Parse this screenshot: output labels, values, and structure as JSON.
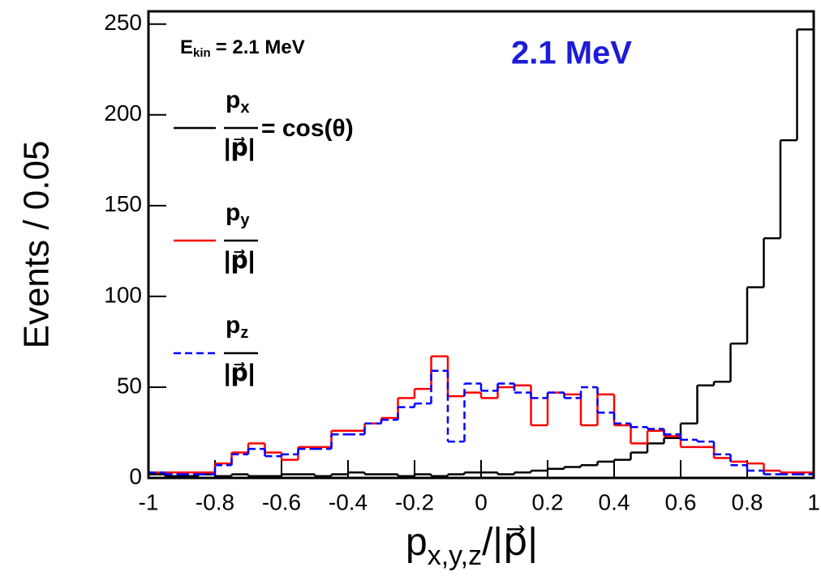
{
  "chart_data": {
    "type": "histogram",
    "ylabel": "Events / 0.05",
    "xlabel": {
      "symbol": "p",
      "subscript": "x,y,z",
      "suffix": "/|p⃗|"
    },
    "annotations": [
      {
        "symbol": "E",
        "subscript": "kin",
        "suffix": "= 2.1 MeV"
      },
      {
        "text": "2.1 MeV",
        "color": "#1c1cd8"
      }
    ],
    "bins": [
      -1,
      -0.95,
      -0.9,
      -0.85,
      -0.8,
      -0.75,
      -0.7,
      -0.65,
      -0.6,
      -0.55,
      -0.5,
      -0.45,
      -0.4,
      -0.35,
      -0.3,
      -0.25,
      -0.2,
      -0.15,
      -0.1,
      -0.05,
      0,
      0.05,
      0.1,
      0.15,
      0.2,
      0.25,
      0.3,
      0.35,
      0.4,
      0.45,
      0.5,
      0.55,
      0.6,
      0.65,
      0.7,
      0.75,
      0.8,
      0.85,
      0.9,
      0.95,
      1
    ],
    "series": [
      {
        "legend": {
          "symbol": "p",
          "subscript": "x",
          "denominator": "|p⃗|",
          "suffix": "= cos(θ)"
        },
        "color": "#000000",
        "linestyle": "solid",
        "values": [
          2,
          1,
          1,
          2,
          1,
          2,
          1,
          1,
          2,
          2,
          1,
          2,
          3,
          2,
          2,
          1,
          2,
          1,
          2,
          3,
          3,
          2,
          3,
          4,
          5,
          6,
          7,
          9,
          10,
          14,
          19,
          22,
          30,
          51,
          53,
          74,
          105,
          132,
          186,
          247
        ]
      },
      {
        "legend": {
          "symbol": "p",
          "subscript": "y",
          "denominator": "|p⃗|"
        },
        "color": "#ff0000",
        "linestyle": "solid",
        "values": [
          3,
          3,
          3,
          3,
          8,
          14,
          19,
          14,
          10,
          17,
          17,
          26,
          26,
          30,
          33,
          44,
          49,
          67,
          45,
          47,
          44,
          50,
          51,
          29,
          47,
          46,
          29,
          46,
          29,
          19,
          26,
          23,
          17,
          17,
          11,
          9,
          8,
          4,
          3,
          3
        ]
      },
      {
        "legend": {
          "symbol": "p",
          "subscript": "z",
          "denominator": "|p⃗|"
        },
        "color": "#0000ff",
        "linestyle": "dashed",
        "values": [
          3,
          2,
          2,
          2,
          7,
          13,
          16,
          12,
          13,
          16,
          16,
          24,
          24,
          30,
          32,
          39,
          41,
          59,
          20,
          52,
          48,
          52,
          47,
          44,
          47,
          44,
          50,
          36,
          30,
          28,
          27,
          24,
          21,
          20,
          13,
          7,
          4,
          2,
          2,
          2
        ]
      }
    ],
    "xlim": [
      -1,
      1
    ],
    "ylim": [
      0,
      257
    ],
    "xticks": [
      -1,
      -0.8,
      -0.6,
      -0.4,
      -0.2,
      0,
      0.2,
      0.4,
      0.6,
      0.8,
      1
    ],
    "yticks": [
      0,
      50,
      100,
      150,
      200,
      250
    ]
  }
}
